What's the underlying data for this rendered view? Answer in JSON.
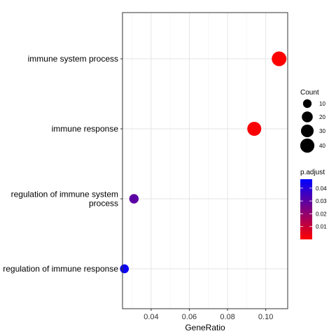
{
  "chart_data": {
    "type": "scatter",
    "title": "",
    "xlabel": "GeneRatio",
    "ylabel": "",
    "xlim": [
      0.025,
      0.1115
    ],
    "xticks": [
      "0.04",
      "0.06",
      "0.08",
      "0.10"
    ],
    "xtick_values": [
      0.04,
      0.06,
      0.08,
      0.1
    ],
    "grid": true,
    "legend_position": "right",
    "categories": [
      [
        "immune system process"
      ],
      [
        "immune response"
      ],
      [
        "regulation of immune system",
        "process"
      ],
      [
        "regulation of immune response"
      ]
    ],
    "points": [
      {
        "term": "immune system process",
        "gene_ratio": 0.107,
        "count": 44,
        "p_adjust": 0.0
      },
      {
        "term": "immune response",
        "gene_ratio": 0.094,
        "count": 39,
        "p_adjust": 0.001
      },
      {
        "term": "regulation of immune system process",
        "gene_ratio": 0.031,
        "count": 13,
        "p_adjust": 0.03
      },
      {
        "term": "regulation of immune response",
        "gene_ratio": 0.026,
        "count": 11,
        "p_adjust": 0.045
      }
    ],
    "size_legend": {
      "title": "Count",
      "breaks": [
        10,
        20,
        30,
        40
      ],
      "labels": [
        "10",
        "20",
        "30",
        "40"
      ]
    },
    "color_legend": {
      "title": "p.adjust",
      "range": [
        0.0,
        0.047
      ],
      "breaks": [
        0.04,
        0.03,
        0.02,
        0.01
      ],
      "labels": [
        "0.04",
        "0.03",
        "0.02",
        "0.01"
      ],
      "low_color": "#FF0000",
      "high_color": "#0000FF"
    }
  }
}
